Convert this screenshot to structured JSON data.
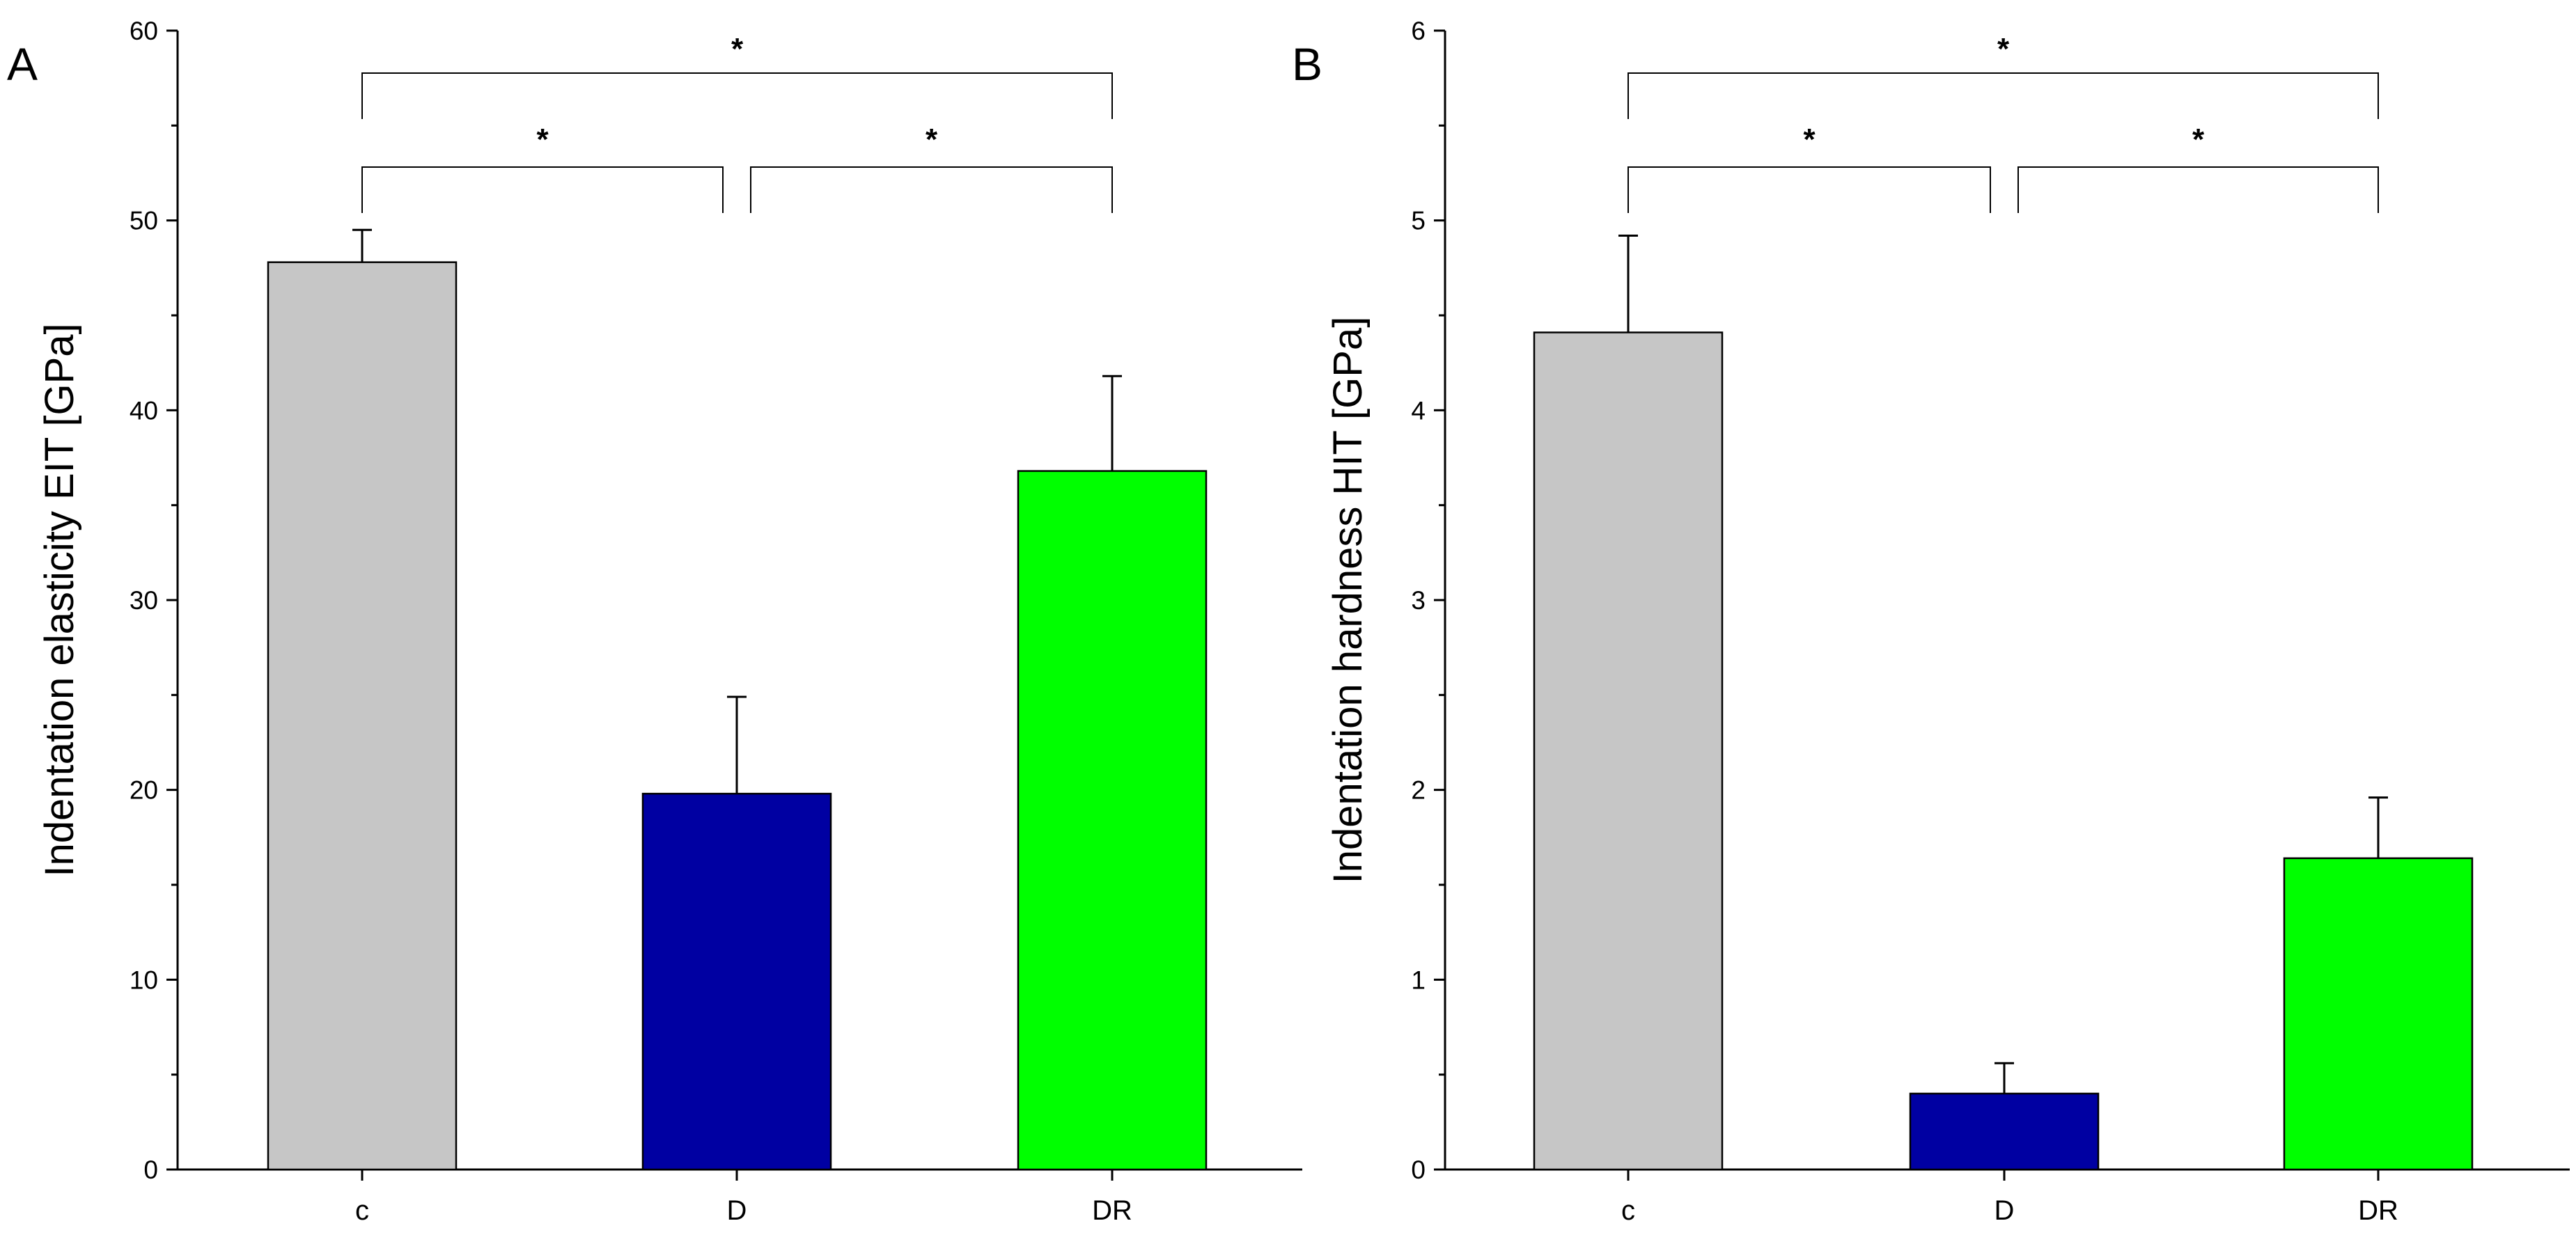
{
  "chart_data": [
    {
      "type": "bar",
      "panel_label": "A",
      "categories": [
        "c",
        "D",
        "DR"
      ],
      "values": [
        47.8,
        19.8,
        36.8
      ],
      "errors": [
        1.7,
        5.1,
        5.0
      ],
      "colors": [
        "#c6c6c6",
        "#0000a2",
        "#00ff00"
      ],
      "ylabel": "Indentation elasticity EIT [GPa]",
      "ylim": [
        0,
        60
      ],
      "yticks": [
        0,
        10,
        20,
        30,
        40,
        50,
        60
      ],
      "significance": [
        {
          "from": 0,
          "to": 1,
          "label": "*"
        },
        {
          "from": 1,
          "to": 2,
          "label": "*"
        },
        {
          "from": 0,
          "to": 2,
          "label": "*"
        }
      ]
    },
    {
      "type": "bar",
      "panel_label": "B",
      "categories": [
        "c",
        "D",
        "DR"
      ],
      "values": [
        4.41,
        0.4,
        1.64
      ],
      "errors": [
        0.51,
        0.16,
        0.32
      ],
      "colors": [
        "#c6c6c6",
        "#0000a2",
        "#00ff00"
      ],
      "ylabel": "Indentation hardness HIT [GPa]",
      "ylim": [
        0,
        6
      ],
      "yticks": [
        0,
        1,
        2,
        3,
        4,
        5,
        6
      ],
      "significance": [
        {
          "from": 0,
          "to": 1,
          "label": "*"
        },
        {
          "from": 1,
          "to": 2,
          "label": "*"
        },
        {
          "from": 0,
          "to": 2,
          "label": "*"
        }
      ]
    }
  ]
}
